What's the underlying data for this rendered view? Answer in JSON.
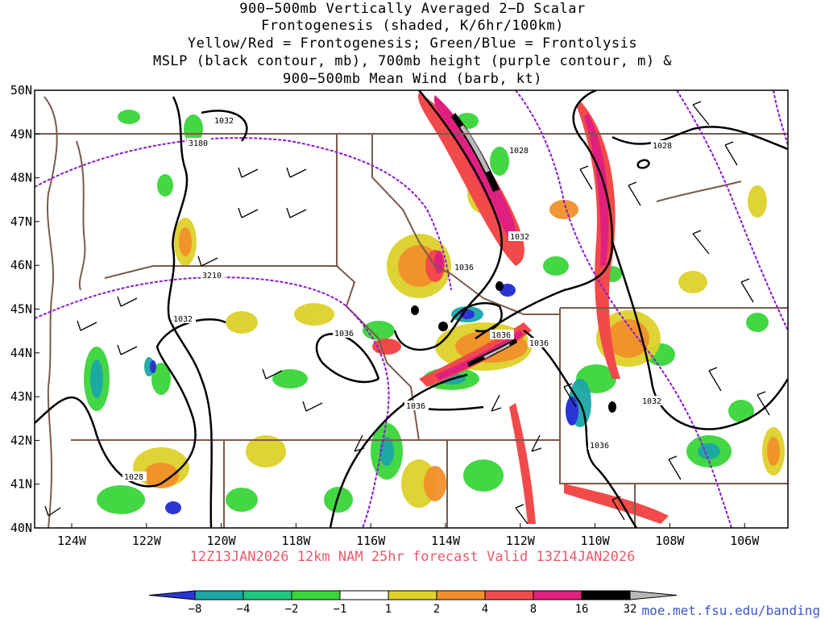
{
  "title": {
    "line1": "900−500mb Vertically Averaged 2−D Scalar",
    "line2": "Frontogenesis (shaded, K/6hr/100km)",
    "line3": "Yellow/Red = Frontogenesis;  Green/Blue = Frontolysis",
    "line4": "MSLP (black contour, mb), 700mb height (purple contour, m) &",
    "line5": "900−500mb Mean Wind (barb, kt)"
  },
  "valid_line": "12Z13JAN2026 12km NAM 25hr forecast Valid 13Z14JAN2026",
  "footer_url": "moe.met.fsu.edu/banding",
  "lat_labels": [
    "50N",
    "49N",
    "48N",
    "47N",
    "46N",
    "45N",
    "44N",
    "43N",
    "42N",
    "41N",
    "40N"
  ],
  "lon_labels": [
    "124W",
    "122W",
    "120W",
    "118W",
    "116W",
    "114W",
    "112W",
    "110W",
    "108W",
    "106W"
  ],
  "contour_labels": {
    "mslp": [
      "1032",
      "1028",
      "1032",
      "1036",
      "1032",
      "1036",
      "1036",
      "1036",
      "1036",
      "1032",
      "1036",
      "1028",
      "1028"
    ],
    "height": [
      "3180",
      "3210"
    ]
  },
  "colorbar": {
    "ticks": [
      "−8",
      "−4",
      "−2",
      "−1",
      "1",
      "2",
      "4",
      "8",
      "16",
      "32"
    ],
    "colors": [
      "#2b35d6",
      "#1aa6a6",
      "#1ec87a",
      "#39d53a",
      "#ffffff",
      "#ddd12a",
      "#f0902a",
      "#f24a4a",
      "#e0207e",
      "#000000",
      "#b8b8b8"
    ]
  },
  "colors": {
    "state_border": "#7b5a4a",
    "mslp": "#000000",
    "height": "#8a1ad0",
    "valid_text": "#e85a6a",
    "footer": "#3a59c9"
  }
}
